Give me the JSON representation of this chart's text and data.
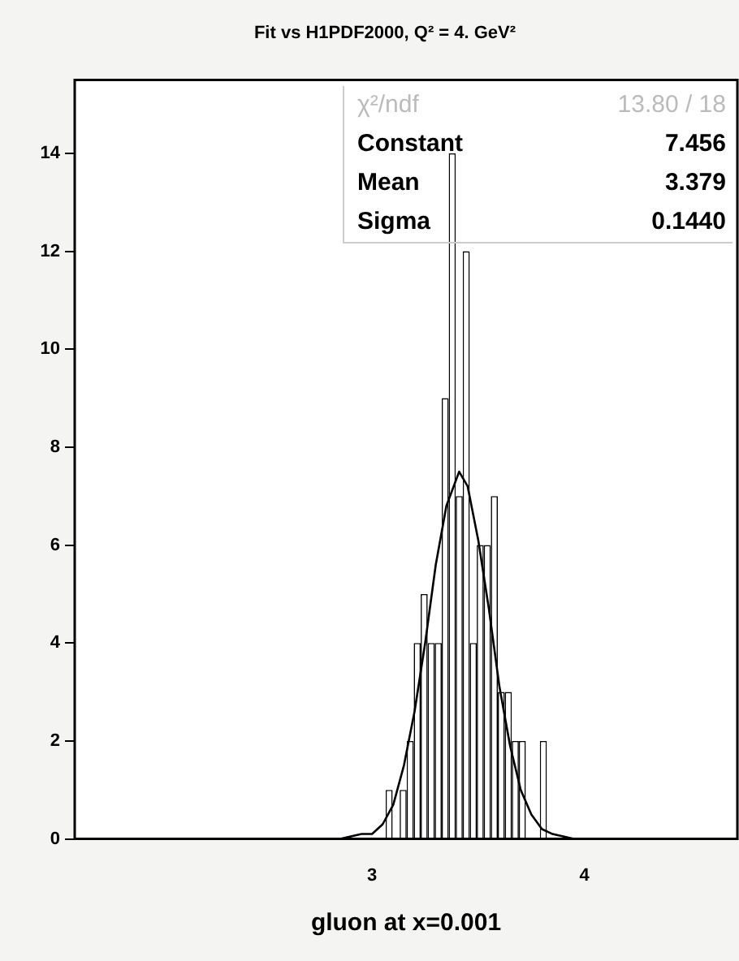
{
  "chart_data": {
    "type": "histogram",
    "title": "Fit vs H1PDF2000, Q² = 4. GeV²",
    "xlabel": "gluon at x=0.001",
    "bins": [
      3.064,
      3.097,
      3.13,
      3.163,
      3.196,
      3.229,
      3.262,
      3.295,
      3.328,
      3.361,
      3.394,
      3.427,
      3.46,
      3.493,
      3.526,
      3.559,
      3.592,
      3.625,
      3.658,
      3.691,
      3.724,
      3.757,
      3.79,
      3.823
    ],
    "values": [
      1,
      0,
      1,
      2,
      4,
      5,
      4,
      4,
      9,
      14,
      7,
      12,
      4,
      6,
      6,
      7,
      3,
      3,
      2,
      2,
      0,
      0,
      2
    ],
    "color": "#000000",
    "series": [
      {
        "type": "line",
        "color": "#000000",
        "x": [
          2.85,
          2.95,
          3.0,
          3.05,
          3.1,
          3.15,
          3.2,
          3.25,
          3.3,
          3.35,
          3.41,
          3.45,
          3.5,
          3.55,
          3.6,
          3.65,
          3.7,
          3.75,
          3.8,
          3.85,
          3.95
        ],
        "values": [
          0.0,
          0.1,
          0.1,
          0.3,
          0.7,
          1.5,
          2.6,
          4.0,
          5.6,
          6.8,
          7.5,
          7.2,
          6.1,
          4.7,
          3.1,
          1.9,
          1.0,
          0.5,
          0.2,
          0.1,
          0.0
        ]
      }
    ],
    "xlim": [
      1.6,
      4.72
    ],
    "xticks": [
      3,
      4
    ],
    "ylim": [
      0,
      15.5
    ],
    "yticks": [
      0,
      2,
      4,
      6,
      8,
      10,
      12,
      14
    ],
    "grid": false,
    "legend": false,
    "marker": "none",
    "line_style": "solid",
    "annotations": [
      "χ²/ndf",
      "13.80  /  18",
      "Constant",
      "7.456",
      "Mean",
      "3.379",
      "Sigma",
      "0.1440"
    ]
  }
}
